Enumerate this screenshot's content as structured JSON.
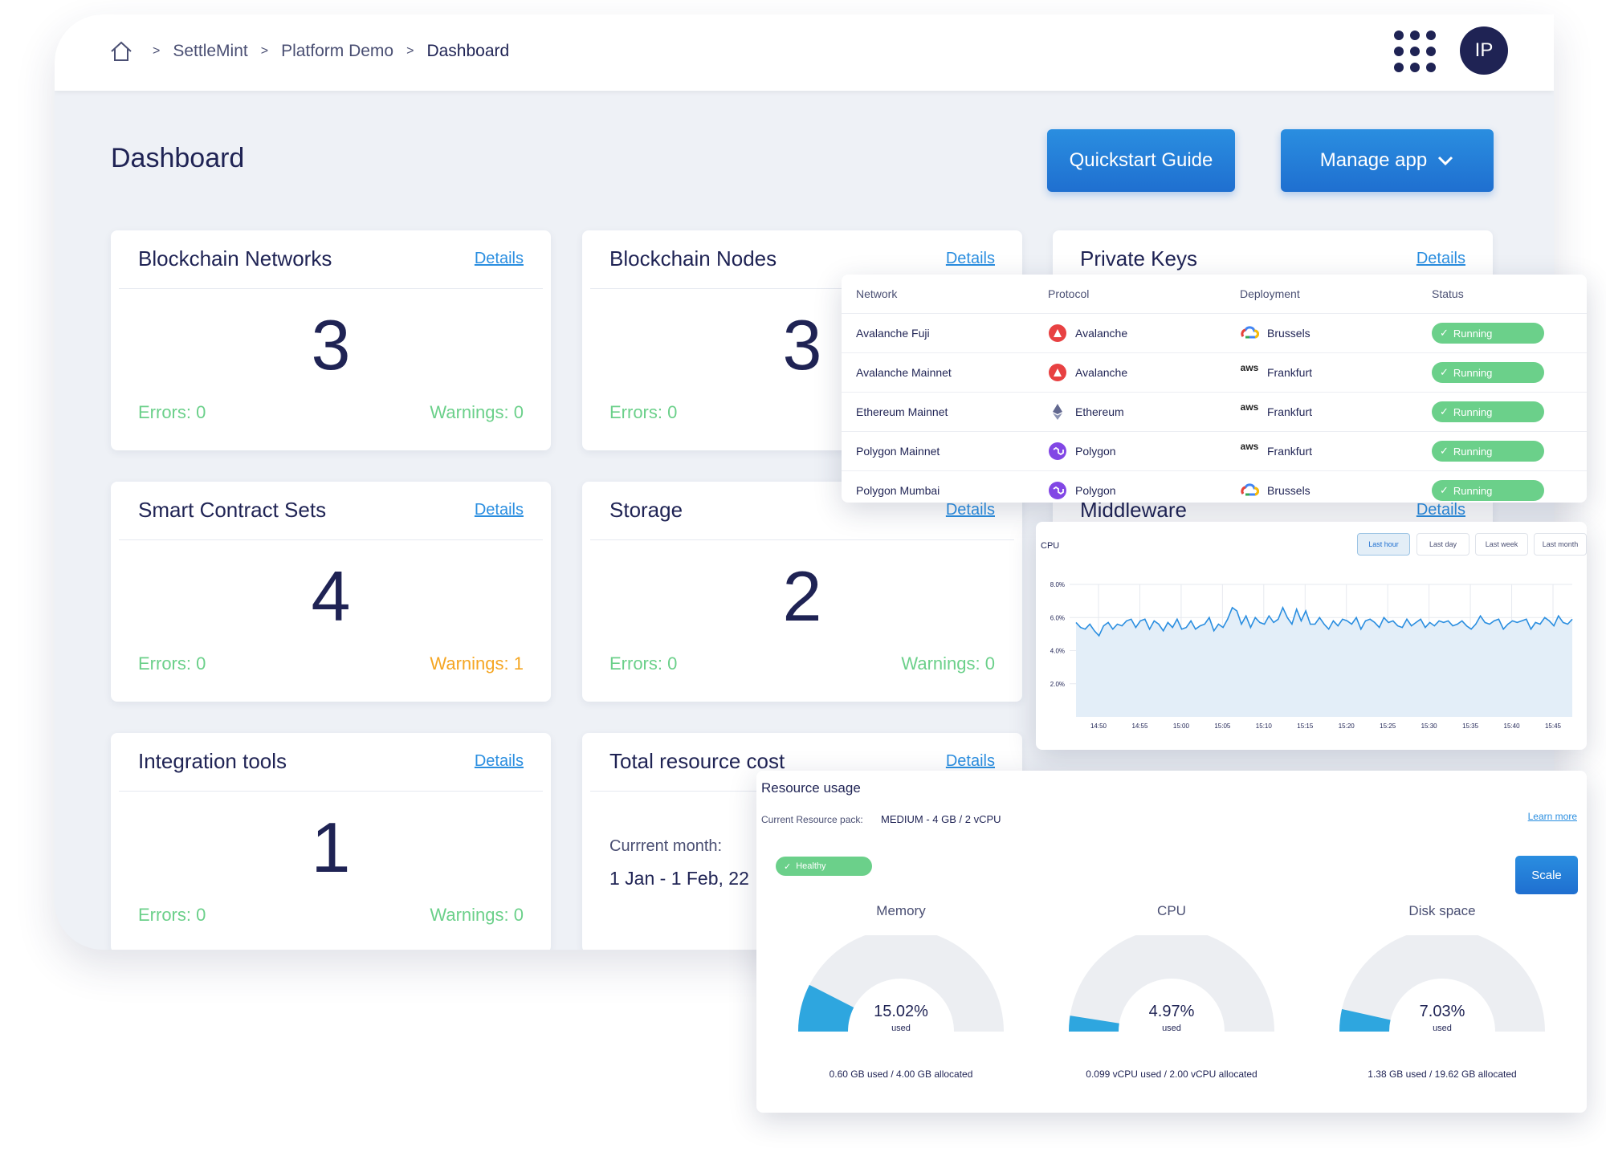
{
  "breadcrumb": {
    "items": [
      "SettleMint",
      "Platform Demo"
    ],
    "current": "Dashboard"
  },
  "header": {
    "avatar_initials": "IP"
  },
  "page": {
    "title": "Dashboard",
    "quickstart_label": "Quickstart Guide",
    "manage_label": "Manage app"
  },
  "cards": {
    "networks": {
      "title": "Blockchain Networks",
      "details": "Details",
      "count": "3",
      "errors": "Errors: 0",
      "warnings": "Warnings: 0"
    },
    "nodes": {
      "title": "Blockchain Nodes",
      "details": "Details",
      "count": "3",
      "errors": "Errors: 0"
    },
    "keys": {
      "title": "Private Keys",
      "details": "Details"
    },
    "contracts": {
      "title": "Smart Contract Sets",
      "details": "Details",
      "count": "4",
      "errors": "Errors: 0",
      "warnings": "Warnings: 1"
    },
    "storage": {
      "title": "Storage",
      "details": "Details",
      "count": "2",
      "errors": "Errors: 0",
      "warnings": "Warnings: 0"
    },
    "middleware": {
      "title": "Middleware",
      "details": "Details"
    },
    "integration": {
      "title": "Integration tools",
      "details": "Details",
      "count": "1",
      "errors": "Errors: 0",
      "warnings": "Warnings: 0"
    },
    "cost": {
      "title": "Total resource cost",
      "details": "Details",
      "month_label": "Currrent month:",
      "range": "1 Jan - 1 Feb, 22"
    }
  },
  "network_table": {
    "headers": [
      "Network",
      "Protocol",
      "Deployment",
      "Status"
    ],
    "rows": [
      {
        "network": "Avalanche Fuji",
        "protocol": "Avalanche",
        "protocol_icon": "avalanche-icon",
        "deployment": "Brussels",
        "deploy_icon": "google-cloud-icon",
        "status": "Running"
      },
      {
        "network": "Avalanche Mainnet",
        "protocol": "Avalanche",
        "protocol_icon": "avalanche-icon",
        "deployment": "Frankfurt",
        "deploy_icon": "aws-icon",
        "status": "Running"
      },
      {
        "network": "Ethereum Mainnet",
        "protocol": "Ethereum",
        "protocol_icon": "ethereum-icon",
        "deployment": "Frankfurt",
        "deploy_icon": "aws-icon",
        "status": "Running"
      },
      {
        "network": "Polygon Mainnet",
        "protocol": "Polygon",
        "protocol_icon": "polygon-icon",
        "deployment": "Frankfurt",
        "deploy_icon": "aws-icon",
        "status": "Running"
      },
      {
        "network": "Polygon Mumbai",
        "protocol": "Polygon",
        "protocol_icon": "polygon-icon",
        "deployment": "Brussels",
        "deploy_icon": "google-cloud-icon",
        "status": "Running"
      }
    ],
    "aws_text": "aws"
  },
  "cpu_panel": {
    "label": "CPU",
    "ranges": [
      "Last hour",
      "Last day",
      "Last week",
      "Last month"
    ],
    "active_range": "Last hour"
  },
  "chart_data": {
    "type": "area",
    "title": "CPU",
    "xlabel": "",
    "ylabel": "",
    "x_ticks": [
      "14:50",
      "14:55",
      "15:00",
      "15:05",
      "15:10",
      "15:15",
      "15:20",
      "15:25",
      "15:30",
      "15:35",
      "15:40",
      "15:45"
    ],
    "y_ticks": [
      "8.0%",
      "6.0%",
      "4.0%",
      "2.0%"
    ],
    "ylim": [
      0,
      8.0
    ],
    "grid": true,
    "color": "#2a8ee0",
    "fill": "#e3eef8",
    "values": [
      5.7,
      5.4,
      5.3,
      5.6,
      5.2,
      4.9,
      5.5,
      5.7,
      5.3,
      5.6,
      5.5,
      5.8,
      5.9,
      5.4,
      5.8,
      5.9,
      5.3,
      5.8,
      5.6,
      5.2,
      5.7,
      5.4,
      5.9,
      5.3,
      5.4,
      5.8,
      5.3,
      5.5,
      5.6,
      6.0,
      5.2,
      5.6,
      5.4,
      5.9,
      6.6,
      6.4,
      5.6,
      6.1,
      5.4,
      6.0,
      5.7,
      5.6,
      6.1,
      5.7,
      5.9,
      6.6,
      6.0,
      5.6,
      6.5,
      5.8,
      6.4,
      5.6,
      5.6,
      6.0,
      5.6,
      5.3,
      5.8,
      5.5,
      5.9,
      5.8,
      5.6,
      6.0,
      5.3,
      5.8,
      5.9,
      5.7,
      5.4,
      6.0,
      5.7,
      5.8,
      5.5,
      5.4,
      5.9,
      5.5,
      5.7,
      5.9,
      5.4,
      5.7,
      5.5,
      5.8,
      5.7,
      5.8,
      5.5,
      5.6,
      5.8,
      5.5,
      5.3,
      5.6,
      6.1,
      5.7,
      5.6,
      5.8,
      5.9,
      5.3,
      5.6,
      5.8,
      5.7,
      5.8,
      5.9,
      5.3,
      5.7,
      5.6,
      6.0,
      5.8,
      5.5,
      6.1,
      5.7,
      5.6,
      5.9
    ]
  },
  "resource": {
    "title": "Resource usage",
    "pack_label": "Current Resource pack:",
    "pack_value": "MEDIUM -  4 GB / 2 vCPU",
    "learn_more": "Learn more",
    "health": "Healthy",
    "scale": "Scale",
    "colors": {
      "used": "#2ea6df",
      "track": "#eceef2"
    },
    "gauges": [
      {
        "label": "Memory",
        "value": "15.02%",
        "fraction": 0.1502,
        "used": "used",
        "footer": "0.60 GB used / 4.00 GB allocated"
      },
      {
        "label": "CPU",
        "value": "4.97%",
        "fraction": 0.0497,
        "used": "used",
        "footer": "0.099 vCPU used / 2.00 vCPU allocated"
      },
      {
        "label": "Disk space",
        "value": "7.03%",
        "fraction": 0.0703,
        "used": "used",
        "footer": "1.38 GB used / 19.62 GB allocated"
      }
    ]
  }
}
